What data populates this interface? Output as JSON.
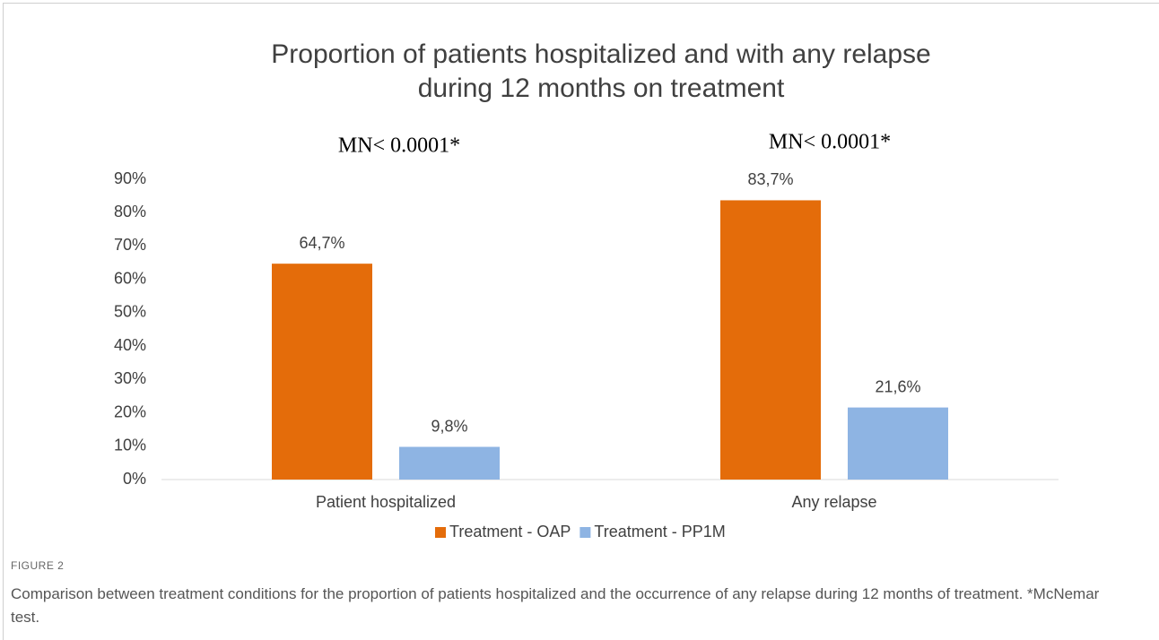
{
  "chart_data": {
    "type": "bar",
    "title": [
      "Proportion of patients hospitalized and with any relapse",
      "during 12 months on treatment"
    ],
    "annotations": [
      "MN< 0.0001*",
      "MN< 0.0001*"
    ],
    "categories": [
      "Patient hospitalized",
      "Any relapse"
    ],
    "series": [
      {
        "name": "Treatment - OAP",
        "color": "#e46c0a",
        "values": [
          64.7,
          83.7
        ],
        "value_labels": [
          "64,7%",
          "83,7%"
        ]
      },
      {
        "name": "Treatment - PP1M",
        "color": "#8eb4e3",
        "values": [
          9.8,
          21.6
        ],
        "value_labels": [
          "9,8%",
          "21,6%"
        ]
      }
    ],
    "ylim": [
      0,
      90
    ],
    "yticks": [
      {
        "value": 0,
        "label": "0%"
      },
      {
        "value": 10,
        "label": "10%"
      },
      {
        "value": 20,
        "label": "20%"
      },
      {
        "value": 30,
        "label": "30%"
      },
      {
        "value": 40,
        "label": "40%"
      },
      {
        "value": 50,
        "label": "50%"
      },
      {
        "value": 60,
        "label": "60%"
      },
      {
        "value": 70,
        "label": "70%"
      },
      {
        "value": 80,
        "label": "80%"
      },
      {
        "value": 90,
        "label": "90%"
      }
    ],
    "grid": false,
    "legend": "bottom"
  },
  "figure": {
    "label": "FIGURE 2",
    "caption": "Comparison between treatment conditions for the proportion of patients hospitalized and the occurrence of any relapse during 12 months of treatment. *McNemar test."
  }
}
